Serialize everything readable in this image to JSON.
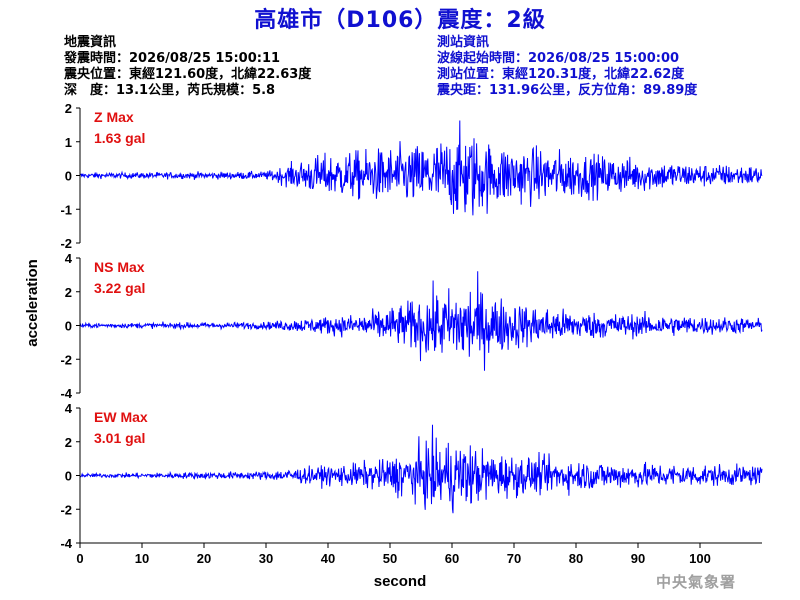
{
  "header": {
    "title": "高雄市（D106）震度：2級"
  },
  "quake_info": {
    "heading": "地震資訊",
    "time": "發震時間：2026/08/25 15:00:11",
    "position": "震央位置：東經121.60度，北緯22.63度",
    "depth_mag": "深　度：13.1公里，芮氏規模：5.8"
  },
  "station_info": {
    "heading": "測站資訊",
    "wave_start": "波線起始時間：2026/08/25 15:00:00",
    "position": "測站位置：東經120.31度，北緯22.62度",
    "distance": "震央距：131.96公里，反方位角：89.89度"
  },
  "watermark": "中央氣象署",
  "colors": {
    "title": "#1010d0",
    "trace": "#0000ff",
    "max_label": "#e01010",
    "station_text": "#1010d0"
  },
  "chart_data": [
    {
      "type": "line",
      "component": "Z",
      "label": "Z Max",
      "max_text": "1.63 gal",
      "peak": 1.63,
      "ylim": [
        -2,
        2
      ],
      "yticks": [
        -2,
        -1,
        0,
        1,
        2
      ],
      "ytick_labels": [
        "-2",
        "-1",
        "0",
        "1",
        "2"
      ],
      "envelope": [
        [
          0,
          0.08
        ],
        [
          30,
          0.12
        ],
        [
          34,
          0.35
        ],
        [
          38,
          0.6
        ],
        [
          45,
          0.75
        ],
        [
          55,
          0.95
        ],
        [
          60,
          1.2
        ],
        [
          62,
          1.5
        ],
        [
          66,
          1.0
        ],
        [
          75,
          0.8
        ],
        [
          90,
          0.5
        ],
        [
          100,
          0.35
        ],
        [
          110,
          0.3
        ]
      ]
    },
    {
      "type": "line",
      "component": "NS",
      "label": "NS Max",
      "max_text": "3.22 gal",
      "peak": 3.22,
      "ylim": [
        -4,
        4
      ],
      "yticks": [
        -4,
        -2,
        0,
        2,
        4
      ],
      "ytick_labels": [
        "-4",
        "-2",
        "0",
        "2",
        "4"
      ],
      "envelope": [
        [
          0,
          0.15
        ],
        [
          30,
          0.25
        ],
        [
          36,
          0.5
        ],
        [
          45,
          0.8
        ],
        [
          52,
          1.5
        ],
        [
          56,
          2.3
        ],
        [
          60,
          2.5
        ],
        [
          63,
          3.2
        ],
        [
          66,
          2.2
        ],
        [
          72,
          1.5
        ],
        [
          80,
          1.0
        ],
        [
          90,
          0.8
        ],
        [
          110,
          0.5
        ]
      ]
    },
    {
      "type": "line",
      "component": "EW",
      "label": "EW Max",
      "max_text": "3.01 gal",
      "peak": 3.01,
      "ylim": [
        -4,
        4
      ],
      "yticks": [
        -4,
        -2,
        0,
        2,
        4
      ],
      "ytick_labels": [
        "-4",
        "-2",
        "0",
        "2",
        "4"
      ],
      "envelope": [
        [
          0,
          0.15
        ],
        [
          30,
          0.35
        ],
        [
          34,
          0.6
        ],
        [
          40,
          0.8
        ],
        [
          48,
          1.2
        ],
        [
          54,
          2.2
        ],
        [
          57,
          3.0
        ],
        [
          61,
          3.0
        ],
        [
          66,
          2.0
        ],
        [
          72,
          1.6
        ],
        [
          82,
          1.2
        ],
        [
          92,
          1.0
        ],
        [
          110,
          0.8
        ]
      ]
    }
  ],
  "x_axis": {
    "label": "second",
    "xlim": [
      0,
      110
    ],
    "ticks": [
      0,
      10,
      20,
      30,
      40,
      50,
      60,
      70,
      80,
      90,
      100
    ],
    "tick_labels": [
      "0",
      "10",
      "20",
      "30",
      "40",
      "50",
      "60",
      "70",
      "80",
      "90",
      "100"
    ]
  },
  "y_axis_label": "acceleration"
}
